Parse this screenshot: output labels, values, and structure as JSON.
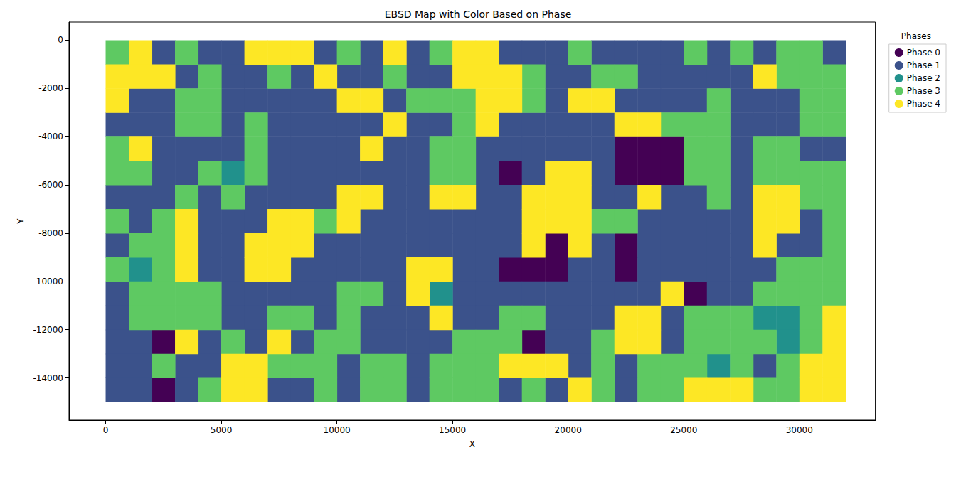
{
  "chart_data": {
    "type": "phase_map",
    "title": "EBSD Map with Color Based on Phase",
    "x_label": "X",
    "y_label": "Y",
    "xlim": [
      -1585,
      33285
    ],
    "ylim": [
      -15750,
      750
    ],
    "xticks": [
      0,
      5000,
      10000,
      15000,
      20000,
      25000,
      30000
    ],
    "yticks": [
      -14000,
      -12000,
      -10000,
      -8000,
      -6000,
      -4000,
      -2000,
      0
    ],
    "grid": false,
    "legend": "right",
    "legend_title": "Phases",
    "marker": "circle",
    "series": [
      {
        "name": "Phase 0",
        "color": "#440154"
      },
      {
        "name": "Phase 1",
        "color": "#3b528b"
      },
      {
        "name": "Phase 2",
        "color": "#21918c"
      },
      {
        "name": "Phase 3",
        "color": "#5ec962"
      },
      {
        "name": "Phase 4",
        "color": "#fde725"
      }
    ],
    "x": [
      500,
      1500,
      2500,
      3500,
      4500,
      5500,
      6500,
      7500,
      8500,
      9500,
      10500,
      11500,
      12500,
      13500,
      14500,
      15500,
      16500,
      17500,
      18500,
      19500,
      20500,
      21500,
      22500,
      23500,
      24500,
      25500,
      26500,
      27500,
      28500,
      29500,
      30500,
      31500
    ],
    "y": [
      -500,
      -1500,
      -2500,
      -3500,
      -4500,
      -5500,
      -6500,
      -7500,
      -8500,
      -9500,
      -10500,
      -11500,
      -12500,
      -13500,
      -14500
    ],
    "cells": [
      [
        3,
        4,
        1,
        3,
        1,
        1,
        4,
        4,
        4,
        1,
        3,
        1,
        4,
        1,
        3,
        4,
        4,
        1,
        1,
        1,
        3,
        1,
        1,
        1,
        1,
        3,
        1,
        3,
        1,
        3,
        3,
        1
      ],
      [
        4,
        4,
        4,
        1,
        3,
        1,
        1,
        3,
        1,
        4,
        1,
        1,
        3,
        1,
        1,
        4,
        4,
        4,
        3,
        1,
        1,
        3,
        3,
        1,
        1,
        1,
        1,
        1,
        4,
        3,
        3,
        3
      ],
      [
        4,
        1,
        1,
        3,
        3,
        1,
        1,
        1,
        1,
        1,
        4,
        4,
        1,
        3,
        3,
        3,
        4,
        4,
        3,
        1,
        4,
        4,
        1,
        1,
        1,
        1,
        3,
        1,
        1,
        1,
        3,
        3
      ],
      [
        1,
        1,
        1,
        3,
        3,
        1,
        3,
        1,
        1,
        1,
        1,
        1,
        4,
        1,
        1,
        3,
        4,
        1,
        1,
        1,
        1,
        1,
        4,
        4,
        3,
        3,
        3,
        1,
        1,
        1,
        3,
        3
      ],
      [
        3,
        4,
        1,
        1,
        1,
        1,
        3,
        1,
        1,
        1,
        1,
        4,
        1,
        1,
        3,
        3,
        1,
        1,
        1,
        1,
        1,
        1,
        0,
        0,
        0,
        3,
        3,
        1,
        3,
        3,
        1,
        1
      ],
      [
        3,
        3,
        1,
        1,
        3,
        2,
        3,
        1,
        1,
        1,
        1,
        1,
        1,
        1,
        3,
        3,
        1,
        0,
        1,
        4,
        4,
        1,
        0,
        0,
        0,
        3,
        3,
        1,
        3,
        3,
        3,
        3
      ],
      [
        1,
        1,
        1,
        3,
        1,
        3,
        1,
        1,
        1,
        1,
        4,
        4,
        1,
        1,
        4,
        4,
        1,
        1,
        4,
        4,
        4,
        1,
        1,
        4,
        1,
        1,
        3,
        1,
        4,
        4,
        3,
        3
      ],
      [
        3,
        1,
        3,
        4,
        1,
        1,
        1,
        4,
        4,
        3,
        4,
        1,
        1,
        1,
        1,
        1,
        1,
        1,
        4,
        4,
        4,
        3,
        3,
        1,
        1,
        1,
        1,
        1,
        4,
        4,
        1,
        3
      ],
      [
        1,
        3,
        3,
        4,
        1,
        1,
        4,
        4,
        4,
        1,
        1,
        1,
        1,
        1,
        1,
        1,
        1,
        1,
        4,
        0,
        4,
        1,
        0,
        1,
        1,
        1,
        1,
        1,
        4,
        1,
        1,
        3
      ],
      [
        3,
        2,
        3,
        4,
        1,
        1,
        4,
        4,
        1,
        1,
        1,
        1,
        1,
        4,
        4,
        1,
        1,
        0,
        0,
        0,
        1,
        1,
        0,
        1,
        1,
        1,
        1,
        1,
        1,
        3,
        3,
        3
      ],
      [
        1,
        3,
        3,
        3,
        3,
        1,
        1,
        1,
        1,
        1,
        3,
        3,
        1,
        4,
        2,
        1,
        1,
        1,
        1,
        1,
        1,
        1,
        1,
        1,
        4,
        0,
        1,
        1,
        3,
        3,
        3,
        3
      ],
      [
        1,
        3,
        3,
        3,
        3,
        1,
        1,
        3,
        3,
        1,
        3,
        1,
        1,
        1,
        4,
        1,
        1,
        3,
        3,
        1,
        1,
        1,
        4,
        4,
        1,
        3,
        3,
        3,
        2,
        2,
        3,
        4
      ],
      [
        1,
        1,
        0,
        4,
        1,
        3,
        1,
        4,
        1,
        3,
        3,
        1,
        1,
        1,
        1,
        3,
        3,
        3,
        0,
        1,
        1,
        3,
        4,
        4,
        1,
        3,
        3,
        3,
        3,
        2,
        3,
        4
      ],
      [
        1,
        1,
        3,
        1,
        1,
        4,
        4,
        3,
        3,
        3,
        1,
        3,
        3,
        1,
        3,
        3,
        3,
        4,
        4,
        4,
        1,
        3,
        1,
        3,
        3,
        3,
        2,
        3,
        1,
        3,
        4,
        4
      ],
      [
        1,
        1,
        0,
        1,
        3,
        4,
        4,
        1,
        1,
        3,
        1,
        3,
        3,
        1,
        3,
        3,
        3,
        1,
        3,
        1,
        4,
        3,
        1,
        3,
        3,
        4,
        4,
        4,
        3,
        3,
        4,
        4
      ]
    ]
  }
}
